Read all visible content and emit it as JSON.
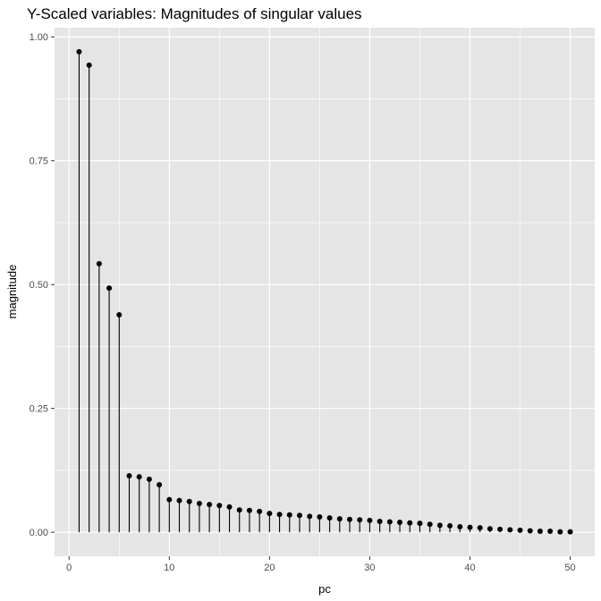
{
  "chart_data": {
    "type": "lollipop",
    "title": "Y-Scaled variables: Magnitudes of singular values",
    "xlabel": "pc",
    "ylabel": "magnitude",
    "xlim": [
      -1.45,
      52.45
    ],
    "ylim": [
      -0.0485,
      1.0185
    ],
    "xticks": [
      0,
      10,
      20,
      30,
      40,
      50
    ],
    "xtick_labels": [
      "0",
      "10",
      "20",
      "30",
      "40",
      "50"
    ],
    "yticks": [
      0,
      0.25,
      0.5,
      0.75,
      1
    ],
    "ytick_labels": [
      "0.00",
      "0.25",
      "0.50",
      "0.75",
      "1.00"
    ],
    "grid": true,
    "background": "#e5e5e5",
    "grid_color": "#ffffff",
    "mark_color": "#000000",
    "x": [
      1,
      2,
      3,
      4,
      5,
      6,
      7,
      8,
      9,
      10,
      11,
      12,
      13,
      14,
      15,
      16,
      17,
      18,
      19,
      20,
      21,
      22,
      23,
      24,
      25,
      26,
      27,
      28,
      29,
      30,
      31,
      32,
      33,
      34,
      35,
      36,
      37,
      38,
      39,
      40,
      41,
      42,
      43,
      44,
      45,
      46,
      47,
      48,
      49,
      50
    ],
    "values": [
      0.97,
      0.943,
      0.542,
      0.493,
      0.439,
      0.114,
      0.112,
      0.107,
      0.096,
      0.066,
      0.064,
      0.062,
      0.058,
      0.056,
      0.054,
      0.051,
      0.045,
      0.044,
      0.042,
      0.038,
      0.036,
      0.035,
      0.034,
      0.032,
      0.031,
      0.029,
      0.027,
      0.026,
      0.025,
      0.024,
      0.022,
      0.021,
      0.02,
      0.019,
      0.018,
      0.016,
      0.014,
      0.013,
      0.011,
      0.01,
      0.009,
      0.007,
      0.006,
      0.005,
      0.004,
      0.003,
      0.002,
      0.002,
      0.001,
      0.001
    ]
  }
}
